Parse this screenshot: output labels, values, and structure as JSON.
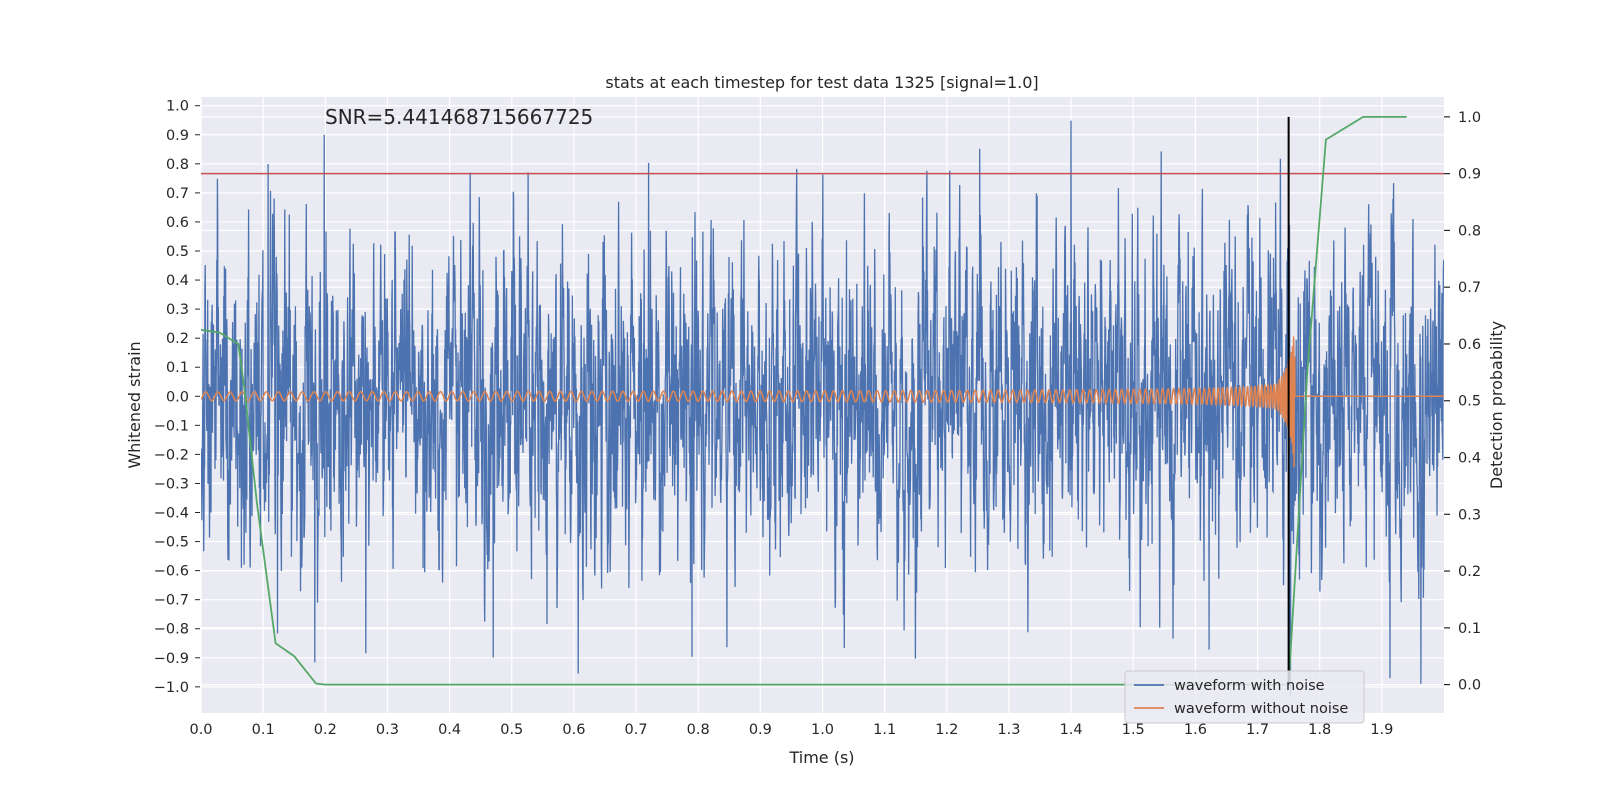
{
  "chart_data": {
    "type": "line",
    "title": "stats at each timestep for test data 1325 [signal=1.0]",
    "xlabel": "Time (s)",
    "ylabel": "Whitened strain",
    "y2label": "Detection probability",
    "annotation": "SNR=5.441468715667725",
    "xlim": [
      0.0,
      2.0
    ],
    "ylim": [
      -1.09,
      1.03
    ],
    "y2lim": [
      -0.05,
      1.035
    ],
    "x_ticks": [
      "0.0",
      "0.1",
      "0.2",
      "0.3",
      "0.4",
      "0.5",
      "0.6",
      "0.7",
      "0.8",
      "0.9",
      "1.0",
      "1.1",
      "1.2",
      "1.3",
      "1.4",
      "1.5",
      "1.6",
      "1.7",
      "1.8",
      "1.9"
    ],
    "y_ticks": [
      "1.0",
      "0.9",
      "0.8",
      "0.7",
      "0.6",
      "0.5",
      "0.4",
      "0.3",
      "0.2",
      "0.1",
      "0.0",
      "−0.1",
      "−0.2",
      "−0.3",
      "−0.4",
      "−0.5",
      "−0.6",
      "−0.7",
      "−0.8",
      "−0.9",
      "−1.0"
    ],
    "y2_ticks": [
      "1.0",
      "0.9",
      "0.8",
      "0.7",
      "0.6",
      "0.5",
      "0.4",
      "0.3",
      "0.2",
      "0.1",
      "0.0"
    ],
    "grid": true,
    "legend_position": "bottom-right",
    "legend": [
      "waveform with noise",
      "waveform without noise"
    ],
    "colors": {
      "noise": "#4c72b0",
      "signal": "#dd8452",
      "probability": "#55a868",
      "threshold": "#c44e52",
      "marker": "#000000",
      "background": "#eaeaf2"
    },
    "series": [
      {
        "name": "waveform with noise",
        "description_values": "noisy whitened strain, approximately in [-1.0, 0.94]",
        "sample_rate": 2048,
        "amplitude_std": 0.27,
        "peaks": [
          {
            "x": 0.108,
            "y": 0.79
          },
          {
            "x": 0.198,
            "y": 0.89
          },
          {
            "x": 0.72,
            "y": 0.82
          },
          {
            "x": 1.253,
            "y": 0.87
          },
          {
            "x": 1.4,
            "y": 0.94
          },
          {
            "x": 1.913,
            "y": 0.94
          },
          {
            "x": 0.183,
            "y": -0.93
          },
          {
            "x": 0.123,
            "y": -0.83
          },
          {
            "x": 0.265,
            "y": -0.87
          },
          {
            "x": 0.47,
            "y": -0.9
          },
          {
            "x": 0.79,
            "y": -0.91
          },
          {
            "x": 1.035,
            "y": -0.87
          },
          {
            "x": 1.622,
            "y": -0.9
          },
          {
            "x": 1.913,
            "y": -0.97
          },
          {
            "x": 1.963,
            "y": -0.99
          }
        ]
      },
      {
        "name": "waveform without noise",
        "description_values": "chirp signal, amplitude ~0.015 rising to ~0.25 at merger t=1.76 s, zero after",
        "merger_time": 1.76,
        "start_amplitude": 0.015,
        "peak_amplitude": 0.25,
        "start_frequency": 10
      },
      {
        "name": "detection probability",
        "axis": "right",
        "x": [
          0.0,
          0.03,
          0.06,
          0.07,
          0.09,
          0.12,
          0.15,
          0.185,
          0.2,
          0.5,
          1.0,
          1.5,
          1.74,
          1.75,
          1.78,
          1.81,
          1.87,
          1.9,
          1.94
        ],
        "y": [
          0.625,
          0.62,
          0.6,
          0.52,
          0.32,
          0.073,
          0.05,
          0.002,
          0.0,
          0.0,
          0.0,
          0.0,
          0.0,
          0.0,
          0.55,
          0.96,
          1.0,
          1.0,
          1.0
        ]
      }
    ],
    "threshold_line": {
      "axis": "right",
      "y": 0.9
    },
    "vertical_line": {
      "x": 1.75,
      "y_from": 0.0,
      "y_to": 1.0,
      "axis": "right"
    }
  }
}
